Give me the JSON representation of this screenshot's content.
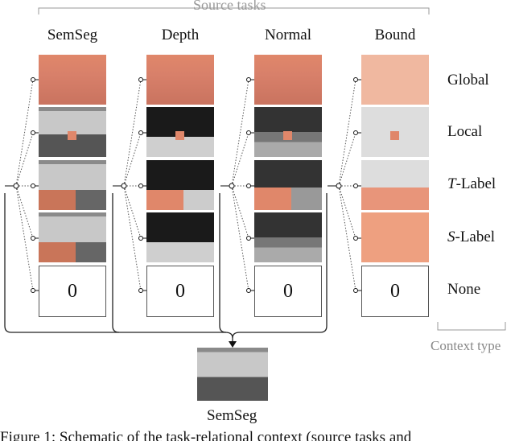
{
  "source_tasks_label": "Source tasks",
  "context_type_label": "Context type",
  "tasks": [
    "SemSeg",
    "Depth",
    "Normal",
    "Bound"
  ],
  "context_types": [
    {
      "prefix": "",
      "label": "Global"
    },
    {
      "prefix": "",
      "label": "Local"
    },
    {
      "prefix": "T",
      "label": "-Label"
    },
    {
      "prefix": "S",
      "label": "-Label"
    },
    {
      "prefix": "",
      "label": "None"
    }
  ],
  "none_value": "0",
  "target_task": "SemSeg",
  "caption": "Figure 1: Schematic of the task-relational context (source tasks and"
}
